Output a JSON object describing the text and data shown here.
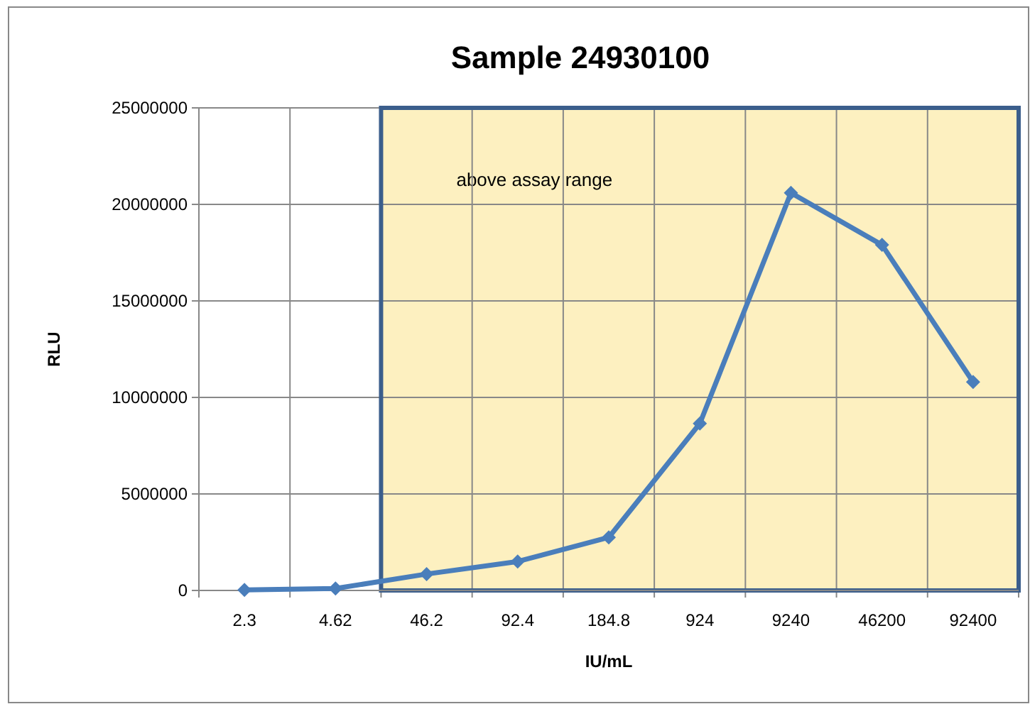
{
  "chart_data": {
    "type": "line",
    "title": "Sample 24930100",
    "xlabel": "IU/mL",
    "ylabel": "RLU",
    "categories": [
      "2.3",
      "4.62",
      "46.2",
      "92.4",
      "184.8",
      "924",
      "9240",
      "46200",
      "92400"
    ],
    "series": [
      {
        "color": "#4a7ebb",
        "values": [
          30000,
          100000,
          850000,
          1500000,
          2750000,
          8650000,
          20600000,
          17900000,
          10800000
        ]
      }
    ],
    "ylim": [
      0,
      25000000
    ],
    "yticks": [
      0,
      5000000,
      10000000,
      15000000,
      20000000,
      25000000
    ],
    "grid": true,
    "marker": "diamond",
    "bands": [
      {
        "axis": "x",
        "from": "46.2",
        "to": "92400",
        "label": "above assay range",
        "color": "#fdf0c0"
      }
    ]
  }
}
